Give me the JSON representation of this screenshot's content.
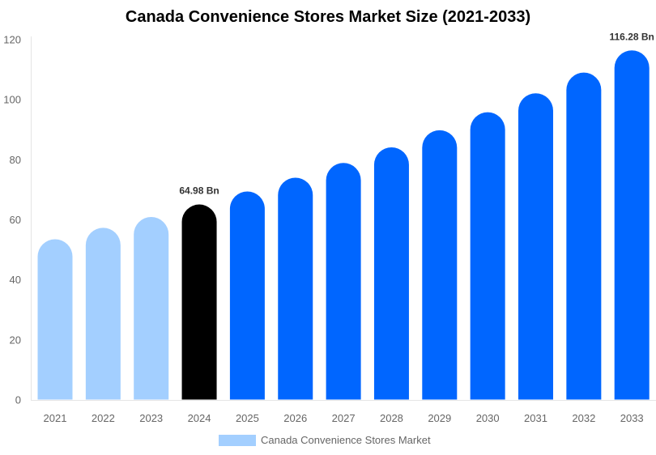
{
  "chart_data": {
    "type": "bar",
    "title": "Canada Convenience Stores Market Size (2021-2033)",
    "categories": [
      "2021",
      "2022",
      "2023",
      "2024",
      "2025",
      "2026",
      "2027",
      "2028",
      "2029",
      "2030",
      "2031",
      "2032",
      "2033"
    ],
    "series": [
      {
        "name": "Canada Convenience Stores Market",
        "values": [
          53.4,
          57.2,
          60.8,
          64.98,
          69.3,
          73.9,
          78.8,
          84.0,
          89.7,
          95.7,
          102.0,
          108.9,
          116.28
        ]
      }
    ],
    "data_labels": {
      "3": "64.98 Bn",
      "12": "116.28 Bn"
    },
    "bar_colors": [
      "#a3cfff",
      "#a3cfff",
      "#a3cfff",
      "#000000",
      "#0066ff",
      "#0066ff",
      "#0066ff",
      "#0066ff",
      "#0066ff",
      "#0066ff",
      "#0066ff",
      "#0066ff",
      "#0066ff"
    ],
    "legend_color": "#a3cfff",
    "yticks": [
      0,
      20,
      40,
      60,
      80,
      100,
      120
    ],
    "ylim": [
      0,
      120
    ],
    "xlabel": "",
    "ylabel": "",
    "grid": false,
    "legend_position": "bottom"
  }
}
